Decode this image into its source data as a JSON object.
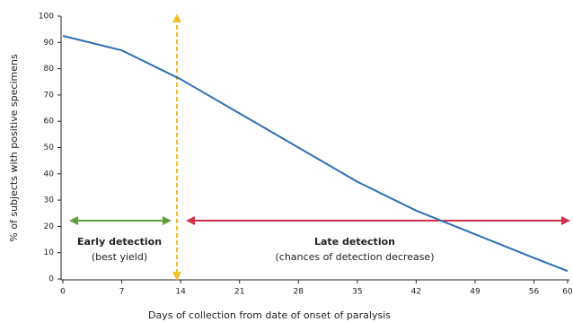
{
  "chart_data": {
    "type": "line",
    "x_label": "Days of collection from date of onset of paralysis",
    "y_label": "% of subjects with positive specimens",
    "x": [
      0,
      7,
      14,
      21,
      28,
      35,
      42,
      49,
      56,
      60
    ],
    "values": [
      92.5,
      87,
      76,
      63,
      50,
      37,
      26,
      17,
      8,
      3
    ],
    "color": "#2e6db4",
    "xlim": [
      0,
      60
    ],
    "xticks": [
      0,
      7,
      14,
      21,
      28,
      35,
      42,
      49,
      56,
      60
    ],
    "ylim": [
      0,
      100
    ],
    "yticks": [
      0,
      10,
      20,
      30,
      40,
      50,
      60,
      70,
      80,
      90,
      100
    ],
    "grid": false,
    "annotations": [
      "Early detection",
      "(best yield)",
      "Late detection",
      "(chances of detection decrease)"
    ]
  }
}
